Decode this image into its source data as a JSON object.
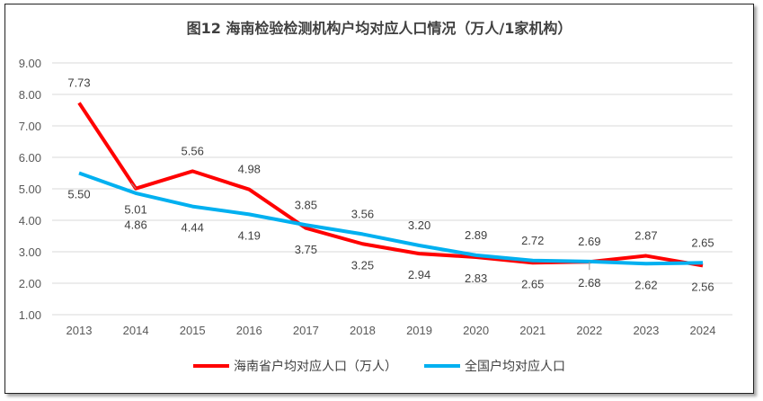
{
  "chart_data": {
    "type": "line",
    "title": "图12  海南检验检测机构户均对应人口情况（万人/1家机构）",
    "categories": [
      "2013",
      "2014",
      "2015",
      "2016",
      "2017",
      "2018",
      "2019",
      "2020",
      "2021",
      "2022",
      "2023",
      "2024"
    ],
    "ylim": [
      1,
      9
    ],
    "yticks": [
      "1.00",
      "2.00",
      "3.00",
      "4.00",
      "5.00",
      "6.00",
      "7.00",
      "8.00",
      "9.00"
    ],
    "grid": true,
    "legend_position": "bottom",
    "series": [
      {
        "name": "海南省户均对应人口（万人）",
        "color": "#ff0000",
        "values": [
          7.73,
          5.01,
          5.56,
          4.98,
          3.75,
          3.25,
          2.94,
          2.83,
          2.65,
          2.68,
          2.87,
          2.56
        ],
        "labels": [
          "7.73",
          "5.01",
          "5.56",
          "4.98",
          "3.75",
          "3.25",
          "2.94",
          "2.83",
          "2.65",
          "2.68",
          "2.87",
          "2.56"
        ]
      },
      {
        "name": "全国户均对应人口",
        "color": "#00b0f0",
        "values": [
          5.5,
          4.86,
          4.44,
          4.19,
          3.85,
          3.56,
          3.2,
          2.89,
          2.72,
          2.69,
          2.62,
          2.65
        ],
        "labels": [
          "5.50",
          "4.86",
          "4.44",
          "4.19",
          "3.85",
          "3.56",
          "3.20",
          "2.89",
          "2.72",
          "2.69",
          "2.62",
          "2.65"
        ]
      }
    ]
  }
}
